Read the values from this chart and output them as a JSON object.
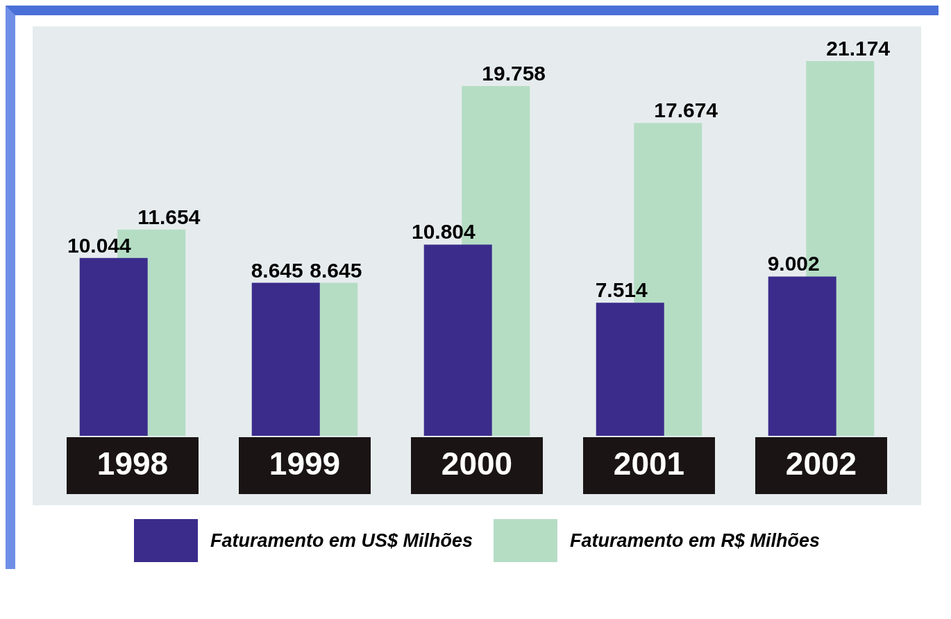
{
  "chart_data": {
    "type": "bar",
    "categories": [
      "1998",
      "1999",
      "2000",
      "2001",
      "2002"
    ],
    "series": [
      {
        "name": "Faturamento em US$ Milhões",
        "color": "#3b2c8c",
        "values": [
          10.044,
          8.645,
          10.804,
          7.514,
          9.002
        ],
        "value_labels": [
          "10.044",
          "8.645",
          "10.804",
          "7.514",
          "9.002"
        ]
      },
      {
        "name": "Faturamento em R$ Milhões",
        "color": "#b5ddc4",
        "values": [
          11.654,
          8.645,
          19.758,
          17.674,
          21.174
        ],
        "value_labels": [
          "11.654",
          "8.645",
          "19.758",
          "17.674",
          "21.174"
        ]
      }
    ],
    "legend": "bottom",
    "grid": false
  }
}
